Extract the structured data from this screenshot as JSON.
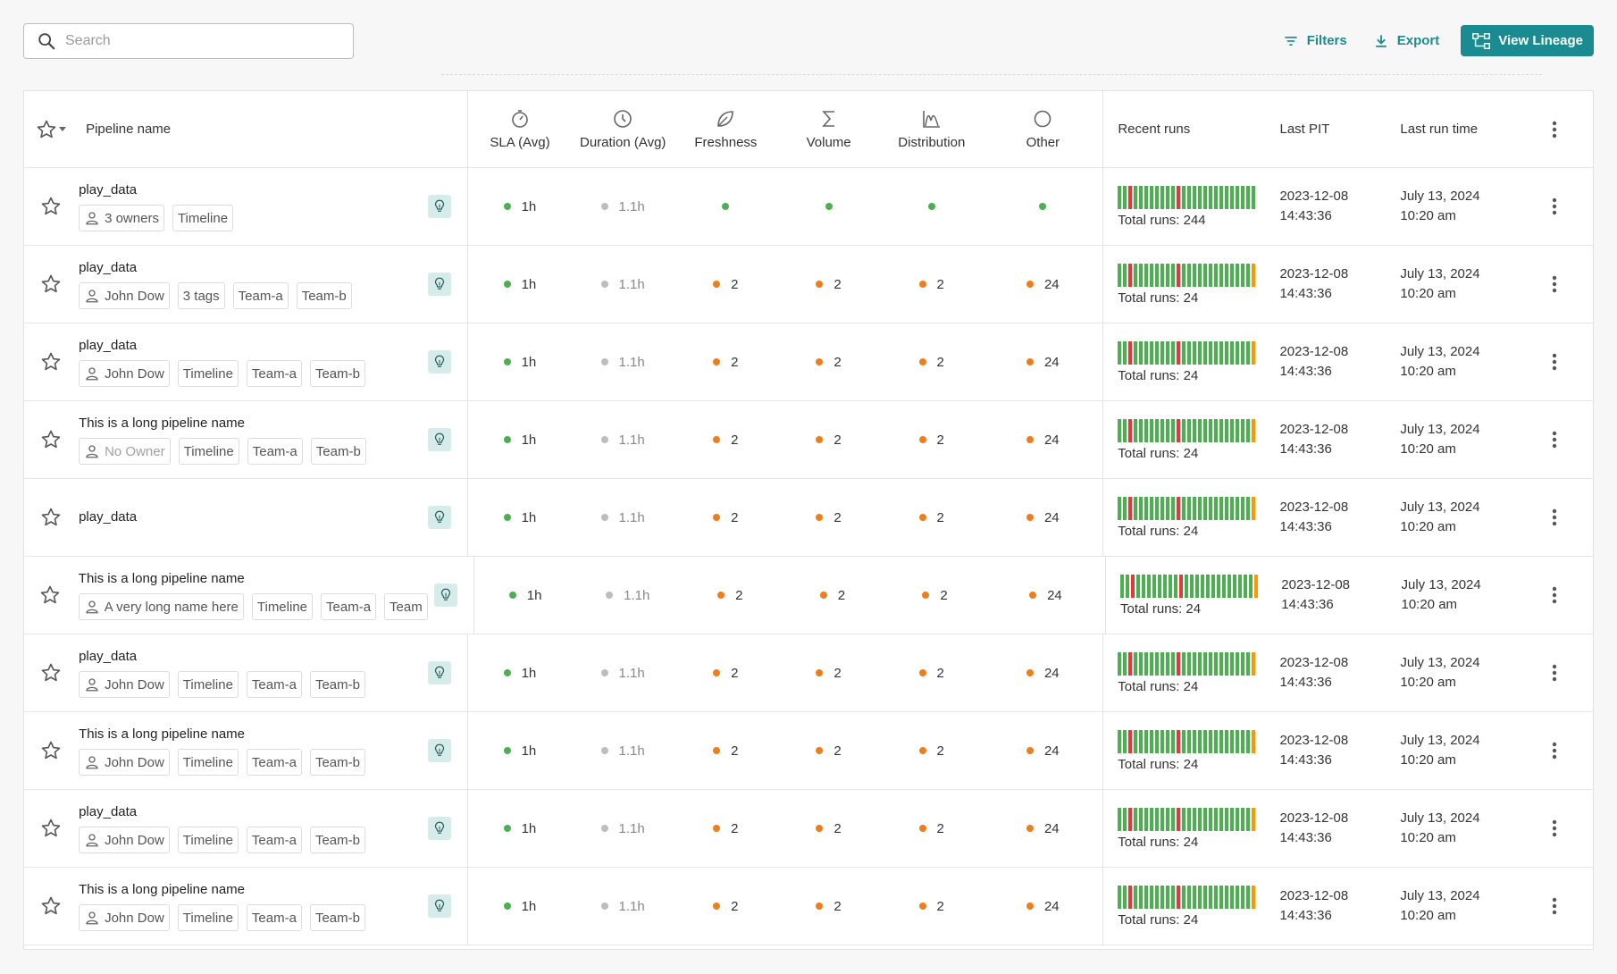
{
  "search": {
    "placeholder": "Search"
  },
  "toolbar": {
    "filters_label": "Filters",
    "export_label": "Export",
    "lineage_label": "View Lineage"
  },
  "colors": {
    "accent": "#1a8c91",
    "ok": "#4caf50",
    "warn": "#ef7d1a",
    "neutral": "#bdbdbd",
    "fail": "#e53935",
    "partial": "#ff9800"
  },
  "columns": {
    "name": "Pipeline name",
    "sla": "SLA (Avg)",
    "duration": "Duration (Avg)",
    "freshness": "Freshness",
    "volume": "Volume",
    "distribution": "Distribution",
    "other": "Other",
    "recent_runs": "Recent runs",
    "last_pit": "Last PIT",
    "last_run_time": "Last run time"
  },
  "rows": [
    {
      "name": "play_data",
      "tags": [
        {
          "text": "3 owners",
          "icon": "person-icon"
        },
        {
          "text": "Timeline"
        }
      ],
      "sla": "1h",
      "duration": "1.1h",
      "freshness": "",
      "volume": "",
      "distribution": "",
      "other": "",
      "status": "ok",
      "runs_total": "Total runs: 244",
      "runs_last": "success",
      "pit_date": "2023-12-08",
      "pit_time": "14:43:36",
      "run_date": "July 13, 2024",
      "run_time": "10:20 am"
    },
    {
      "name": "play_data",
      "tags": [
        {
          "text": "John Dow",
          "icon": "person-icon"
        },
        {
          "text": "3 tags"
        },
        {
          "text": "Team-a"
        },
        {
          "text": "Team-b"
        }
      ],
      "sla": "1h",
      "duration": "1.1h",
      "freshness": "2",
      "volume": "2",
      "distribution": "2",
      "other": "24",
      "status": "warn",
      "runs_total": "Total runs: 24",
      "runs_last": "partial",
      "pit_date": "2023-12-08",
      "pit_time": "14:43:36",
      "run_date": "July 13, 2024",
      "run_time": "10:20 am"
    },
    {
      "name": "play_data",
      "tags": [
        {
          "text": "John Dow",
          "icon": "person-icon"
        },
        {
          "text": "Timeline"
        },
        {
          "text": "Team-a"
        },
        {
          "text": "Team-b"
        }
      ],
      "sla": "1h",
      "duration": "1.1h",
      "freshness": "2",
      "volume": "2",
      "distribution": "2",
      "other": "24",
      "status": "warn",
      "runs_total": "Total runs: 24",
      "runs_last": "partial",
      "pit_date": "2023-12-08",
      "pit_time": "14:43:36",
      "run_date": "July 13, 2024",
      "run_time": "10:20 am"
    },
    {
      "name": "This is a long pipeline name",
      "tags": [
        {
          "text": "No Owner",
          "icon": "person-icon",
          "muted": true
        },
        {
          "text": "Timeline"
        },
        {
          "text": "Team-a"
        },
        {
          "text": "Team-b"
        }
      ],
      "sla": "1h",
      "duration": "1.1h",
      "freshness": "2",
      "volume": "2",
      "distribution": "2",
      "other": "24",
      "status": "warn",
      "runs_total": "Total runs: 24",
      "runs_last": "partial",
      "pit_date": "2023-12-08",
      "pit_time": "14:43:36",
      "run_date": "July 13, 2024",
      "run_time": "10:20 am"
    },
    {
      "name": "play_data",
      "tags": [],
      "sla": "1h",
      "duration": "1.1h",
      "freshness": "2",
      "volume": "2",
      "distribution": "2",
      "other": "24",
      "status": "warn",
      "runs_total": "Total runs: 24",
      "runs_last": "partial",
      "pit_date": "2023-12-08",
      "pit_time": "14:43:36",
      "run_date": "July 13, 2024",
      "run_time": "10:20 am"
    },
    {
      "name": "This is a long pipeline name",
      "tags": [
        {
          "text": "A very long name here",
          "icon": "person-icon"
        },
        {
          "text": "Timeline"
        },
        {
          "text": "Team-a"
        },
        {
          "text": "Team"
        }
      ],
      "sla": "1h",
      "duration": "1.1h",
      "freshness": "2",
      "volume": "2",
      "distribution": "2",
      "other": "24",
      "status": "warn",
      "runs_total": "Total runs: 24",
      "runs_last": "partial",
      "pit_date": "2023-12-08",
      "pit_time": "14:43:36",
      "run_date": "July 13, 2024",
      "run_time": "10:20 am"
    },
    {
      "name": "play_data",
      "tags": [
        {
          "text": "John Dow",
          "icon": "person-icon"
        },
        {
          "text": "Timeline"
        },
        {
          "text": "Team-a"
        },
        {
          "text": "Team-b"
        }
      ],
      "sla": "1h",
      "duration": "1.1h",
      "freshness": "2",
      "volume": "2",
      "distribution": "2",
      "other": "24",
      "status": "warn",
      "runs_total": "Total runs: 24",
      "runs_last": "partial",
      "pit_date": "2023-12-08",
      "pit_time": "14:43:36",
      "run_date": "July 13, 2024",
      "run_time": "10:20 am"
    },
    {
      "name": "This is a long pipeline name",
      "tags": [
        {
          "text": "John Dow",
          "icon": "person-icon"
        },
        {
          "text": "Timeline"
        },
        {
          "text": "Team-a"
        },
        {
          "text": "Team-b"
        }
      ],
      "sla": "1h",
      "duration": "1.1h",
      "freshness": "2",
      "volume": "2",
      "distribution": "2",
      "other": "24",
      "status": "warn",
      "runs_total": "Total runs: 24",
      "runs_last": "partial",
      "pit_date": "2023-12-08",
      "pit_time": "14:43:36",
      "run_date": "July 13, 2024",
      "run_time": "10:20 am"
    },
    {
      "name": "play_data",
      "tags": [
        {
          "text": "John Dow",
          "icon": "person-icon"
        },
        {
          "text": "Timeline"
        },
        {
          "text": "Team-a"
        },
        {
          "text": "Team-b"
        }
      ],
      "sla": "1h",
      "duration": "1.1h",
      "freshness": "2",
      "volume": "2",
      "distribution": "2",
      "other": "24",
      "status": "warn",
      "runs_total": "Total runs: 24",
      "runs_last": "partial",
      "pit_date": "2023-12-08",
      "pit_time": "14:43:36",
      "run_date": "July 13, 2024",
      "run_time": "10:20 am"
    },
    {
      "name": "This is a long pipeline name",
      "tags": [
        {
          "text": "John Dow",
          "icon": "person-icon"
        },
        {
          "text": "Timeline"
        },
        {
          "text": "Team-a"
        },
        {
          "text": "Team-b"
        }
      ],
      "sla": "1h",
      "duration": "1.1h",
      "freshness": "2",
      "volume": "2",
      "distribution": "2",
      "other": "24",
      "status": "warn",
      "runs_total": "Total runs: 24",
      "runs_last": "partial",
      "pit_date": "2023-12-08",
      "pit_time": "14:43:36",
      "run_date": "July 13, 2024",
      "run_time": "10:20 am"
    }
  ]
}
